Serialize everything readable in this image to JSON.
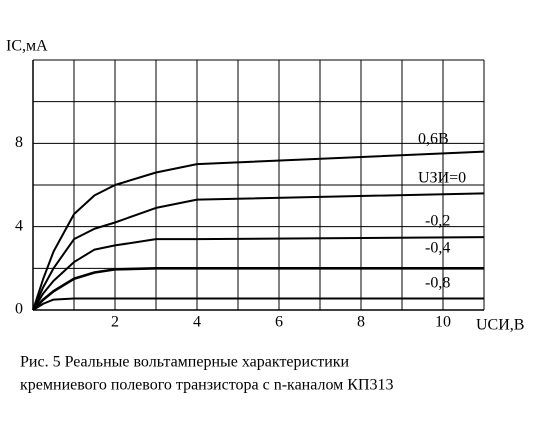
{
  "chart_data": {
    "type": "line",
    "ylabel": "IC,мА",
    "xlabel": "UСИ,В",
    "caption": [
      "Рис. 5 Реальные вольтамперные характеристики",
      "кремниевого полевого транзистора с n-каналом КП313"
    ],
    "x": [
      0,
      0.25,
      0.5,
      1,
      1.5,
      2,
      3,
      4,
      11
    ],
    "series": [
      {
        "name": "0,6В",
        "color": "#000000",
        "values": [
          0,
          1.5,
          2.8,
          4.6,
          5.5,
          6.0,
          6.6,
          7.0,
          7.6
        ]
      },
      {
        "name": "UЗИ=0",
        "color": "#000000",
        "values": [
          0,
          1.1,
          2.0,
          3.4,
          3.9,
          4.2,
          4.9,
          5.3,
          5.6
        ]
      },
      {
        "name": "-0,2",
        "color": "#000000",
        "values": [
          0,
          0.8,
          1.4,
          2.3,
          2.9,
          3.1,
          3.4,
          3.4,
          3.5
        ]
      },
      {
        "name": "-0,4",
        "color": "#000000",
        "values": [
          0,
          0.5,
          0.9,
          1.5,
          1.8,
          1.95,
          2.0,
          2.0,
          2.0
        ]
      },
      {
        "name": "-0,8",
        "color": "#000000",
        "values": [
          0,
          0.3,
          0.5,
          0.55,
          0.55,
          0.55,
          0.55,
          0.55,
          0.55
        ]
      }
    ],
    "xlim": [
      0,
      11
    ],
    "ylim": [
      0,
      12
    ],
    "xticks": [
      2,
      4,
      6,
      8,
      10
    ],
    "yticks": [
      0,
      4,
      8
    ],
    "xgrid": [
      1,
      2,
      3,
      4,
      5,
      6,
      7,
      8,
      9,
      10,
      11
    ],
    "ygrid": [
      2,
      4,
      6,
      8,
      10,
      12
    ],
    "grid": true
  }
}
